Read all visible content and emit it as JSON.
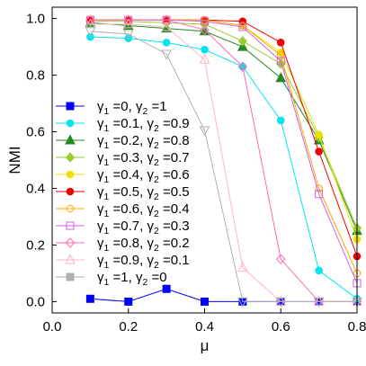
{
  "chart_data": {
    "type": "line",
    "title": "",
    "xlabel": "μ",
    "ylabel": "NMI",
    "xlim": [
      0.0,
      0.8
    ],
    "ylim": [
      -0.04,
      1.04
    ],
    "xticks": [
      "0.0",
      "0.2",
      "0.4",
      "0.6",
      "0.8"
    ],
    "yticks": [
      "0.0",
      "0.2",
      "0.4",
      "0.6",
      "0.8",
      "1.0"
    ],
    "grid": false,
    "legend_position": "lower-left",
    "x": [
      0.1,
      0.2,
      0.3,
      0.4,
      0.5,
      0.6,
      0.7,
      0.8
    ],
    "series": [
      {
        "name": "γ1 =0, γ2 =1",
        "color": "#0000ff",
        "marker": "square",
        "filled": true,
        "legend": {
          "g1": "0",
          "g2": "1"
        },
        "values": [
          0.01,
          0.0,
          0.045,
          0.0,
          0.0,
          0.0,
          0.0,
          0.0
        ]
      },
      {
        "name": "γ1 =0.1, γ2 =0.9",
        "color": "#00e5ee",
        "marker": "circle",
        "filled": true,
        "legend": {
          "g1": "0.1",
          "g2": "0.9"
        },
        "values": [
          0.935,
          0.93,
          0.915,
          0.89,
          0.83,
          0.64,
          0.11,
          0.01
        ]
      },
      {
        "name": "γ1 =0.2, γ2 =0.8",
        "color": "#228b22",
        "marker": "triangle",
        "filled": true,
        "legend": {
          "g1": "0.2",
          "g2": "0.8"
        },
        "values": [
          0.985,
          0.975,
          0.965,
          0.955,
          0.9,
          0.79,
          0.57,
          0.25
        ]
      },
      {
        "name": "γ1 =0.3, γ2 =0.7",
        "color": "#9acd32",
        "marker": "diamond",
        "filled": true,
        "legend": {
          "g1": "0.3",
          "g2": "0.7"
        },
        "values": [
          0.99,
          0.99,
          0.985,
          0.98,
          0.92,
          0.84,
          0.58,
          0.26
        ]
      },
      {
        "name": "γ1 =0.4, γ2 =0.6",
        "color": "#f0e000",
        "marker": "circle",
        "filled": true,
        "legend": {
          "g1": "0.4",
          "g2": "0.6"
        },
        "values": [
          0.995,
          0.995,
          0.995,
          0.995,
          0.975,
          0.88,
          0.59,
          0.22
        ]
      },
      {
        "name": "γ1 =0.5, γ2 =0.5",
        "color": "#ee0000",
        "marker": "circle",
        "filled": true,
        "legend": {
          "g1": "0.5",
          "g2": "0.5"
        },
        "values": [
          0.995,
          0.995,
          0.995,
          0.995,
          0.99,
          0.915,
          0.53,
          0.16
        ]
      },
      {
        "name": "γ1 =0.6, γ2 =0.4",
        "color": "#ffa500",
        "marker": "circle",
        "filled": false,
        "legend": {
          "g1": "0.6",
          "g2": "0.4"
        },
        "values": [
          0.995,
          0.995,
          0.995,
          0.995,
          0.975,
          0.87,
          0.4,
          0.1
        ]
      },
      {
        "name": "γ1 =0.7, γ2 =0.3",
        "color": "#cc66dd",
        "marker": "square",
        "filled": false,
        "legend": {
          "g1": "0.7",
          "g2": "0.3"
        },
        "values": [
          0.995,
          0.995,
          0.995,
          0.99,
          0.97,
          0.85,
          0.38,
          0.065
        ]
      },
      {
        "name": "γ1 =0.8, γ2 =0.2",
        "color": "#ff69b4",
        "marker": "diamond",
        "filled": false,
        "legend": {
          "g1": "0.8",
          "g2": "0.2"
        },
        "values": [
          0.995,
          0.995,
          0.995,
          0.96,
          0.83,
          0.15,
          0.0,
          0.0
        ]
      },
      {
        "name": "γ1 =0.9, γ2 =0.1",
        "color": "#ffb6c1",
        "marker": "triangle",
        "filled": false,
        "legend": {
          "g1": "0.9",
          "g2": "0.1"
        },
        "values": [
          0.98,
          0.98,
          0.97,
          0.855,
          0.12,
          0.0,
          0.0,
          0.0
        ]
      },
      {
        "name": "γ1 =1, γ2 =0",
        "color": "#b0b0b0",
        "marker": "triangle-down",
        "filled": false,
        "legend_marker": "square-filled",
        "legend": {
          "g1": "1",
          "g2": "0"
        },
        "values": [
          0.955,
          0.945,
          0.875,
          0.605,
          0.0,
          0.0,
          0.0,
          0.0
        ]
      }
    ]
  }
}
